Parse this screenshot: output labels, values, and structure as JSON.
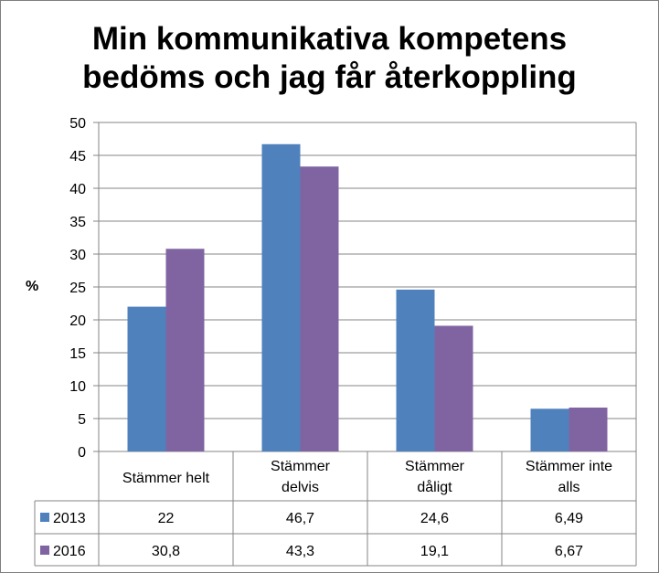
{
  "chart_data": {
    "type": "bar",
    "title_lines": [
      "Min kommunikativa kompetens",
      "bedöms och jag får återkoppling"
    ],
    "ylabel": "%",
    "xlabel": "",
    "ylim": [
      0,
      50
    ],
    "yticks": [
      0,
      5,
      10,
      15,
      20,
      25,
      30,
      35,
      40,
      45,
      50
    ],
    "grid": true,
    "legend": "data-table",
    "categories": [
      [
        "Stämmer helt"
      ],
      [
        "Stämmer",
        "delvis"
      ],
      [
        "Stämmer",
        "dåligt"
      ],
      [
        "Stämmer inte",
        "alls"
      ]
    ],
    "series": [
      {
        "name": "2013",
        "color": "#4f81bd",
        "values": [
          22,
          46.7,
          24.6,
          6.49
        ],
        "labels": [
          "22",
          "46,7",
          "24,6",
          "6,49"
        ]
      },
      {
        "name": "2016",
        "color": "#8064a2",
        "values": [
          30.8,
          43.3,
          19.1,
          6.67
        ],
        "labels": [
          "30,8",
          "43,3",
          "19,1",
          "6,67"
        ]
      }
    ]
  }
}
